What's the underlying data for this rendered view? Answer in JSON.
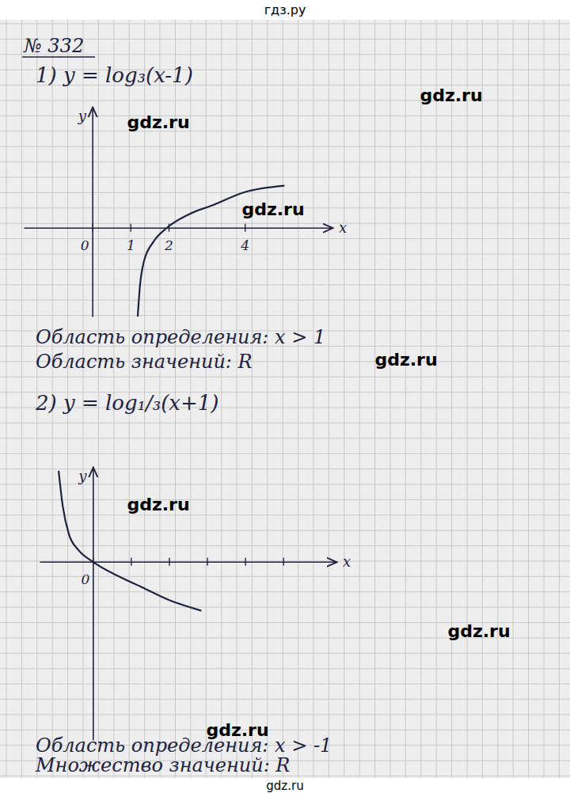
{
  "header": "гдз.ру",
  "problem": "№ 332",
  "watermark": "gdz.ru",
  "footer": "gdz.ru",
  "chart_data": [
    {
      "type": "line",
      "title": "1) y = log₃(x-1)",
      "x": [
        1.19,
        1.25,
        1.35,
        1.6,
        1.96,
        2.54,
        3.17,
        4.0,
        5.04
      ],
      "values": [
        -2.5,
        -1.62,
        -0.96,
        -0.4,
        0,
        0.38,
        0.64,
        1.0,
        1.18
      ],
      "color": "#1f2340",
      "xlim": [
        -1.8,
        6.3
      ],
      "ylim": [
        -2.5,
        3.4
      ],
      "xticks": [
        0,
        1,
        2,
        4
      ],
      "tick_labels": "x",
      "x_label": "x",
      "y_label": "y",
      "annotations": [
        "Область определения: x > 1",
        "Область значений: R"
      ]
    },
    {
      "type": "line",
      "title": "2) y = log₁/₃(x+1)",
      "x": [
        -0.9,
        -0.79,
        -0.63,
        -0.38,
        0,
        0.67,
        1.29,
        1.98,
        2.85
      ],
      "values": [
        2.4,
        1.46,
        0.73,
        0.31,
        0,
        -0.38,
        -0.67,
        -1.0,
        -1.29
      ],
      "color": "#1f2340",
      "xlim": [
        -1.4,
        6.4
      ],
      "ylim": [
        -4.7,
        2.5
      ],
      "xticks": [
        0,
        {
          "value": 1,
          "label": null
        },
        {
          "value": 2,
          "label": null
        },
        {
          "value": 3,
          "label": null
        },
        {
          "value": 4,
          "label": null
        },
        {
          "value": 5,
          "label": null
        }
      ],
      "tick_labels": "x",
      "x_label": "x",
      "y_label": "y",
      "annotations": [
        "Область определения: x > -1",
        "Множество значений: R"
      ]
    }
  ]
}
